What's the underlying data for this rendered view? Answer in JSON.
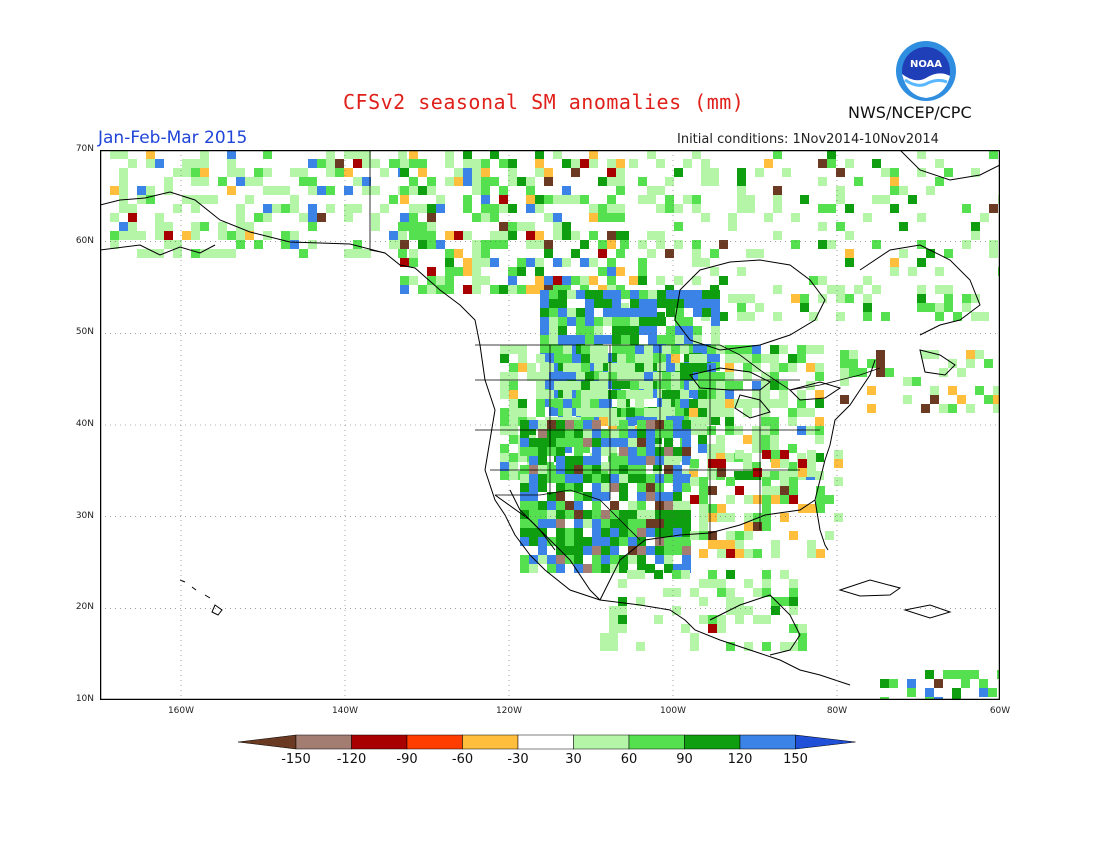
{
  "header": {
    "title": "CFSv2 seasonal SM anomalies (mm)",
    "period": "Jan-Feb-Mar 2015",
    "initial_conditions": "Initial conditions: 1Nov2014-10Nov2014",
    "agency": "NWS/NCEP/CPC",
    "logo_text": "NOAA"
  },
  "map": {
    "lat_labels": [
      "70N",
      "60N",
      "50N",
      "40N",
      "30N",
      "20N",
      "10N"
    ],
    "lon_labels": [
      "160W",
      "140W",
      "120W",
      "100W",
      "80W",
      "60W"
    ],
    "lat_range": [
      10,
      70
    ],
    "lon_range": [
      -171,
      -60
    ],
    "grid": "dotted"
  },
  "colorbar": {
    "labels": [
      "-150",
      "-120",
      "-90",
      "-60",
      "-30",
      "30",
      "60",
      "90",
      "120",
      "150"
    ],
    "colors": [
      "#6b3a22",
      "#a47d72",
      "#a80000",
      "#ff3d00",
      "#ffbe3c",
      "#ffffff",
      "#b4f5a8",
      "#55e14f",
      "#0f9e0f",
      "#3b83e6",
      "#2050d8"
    ]
  }
}
